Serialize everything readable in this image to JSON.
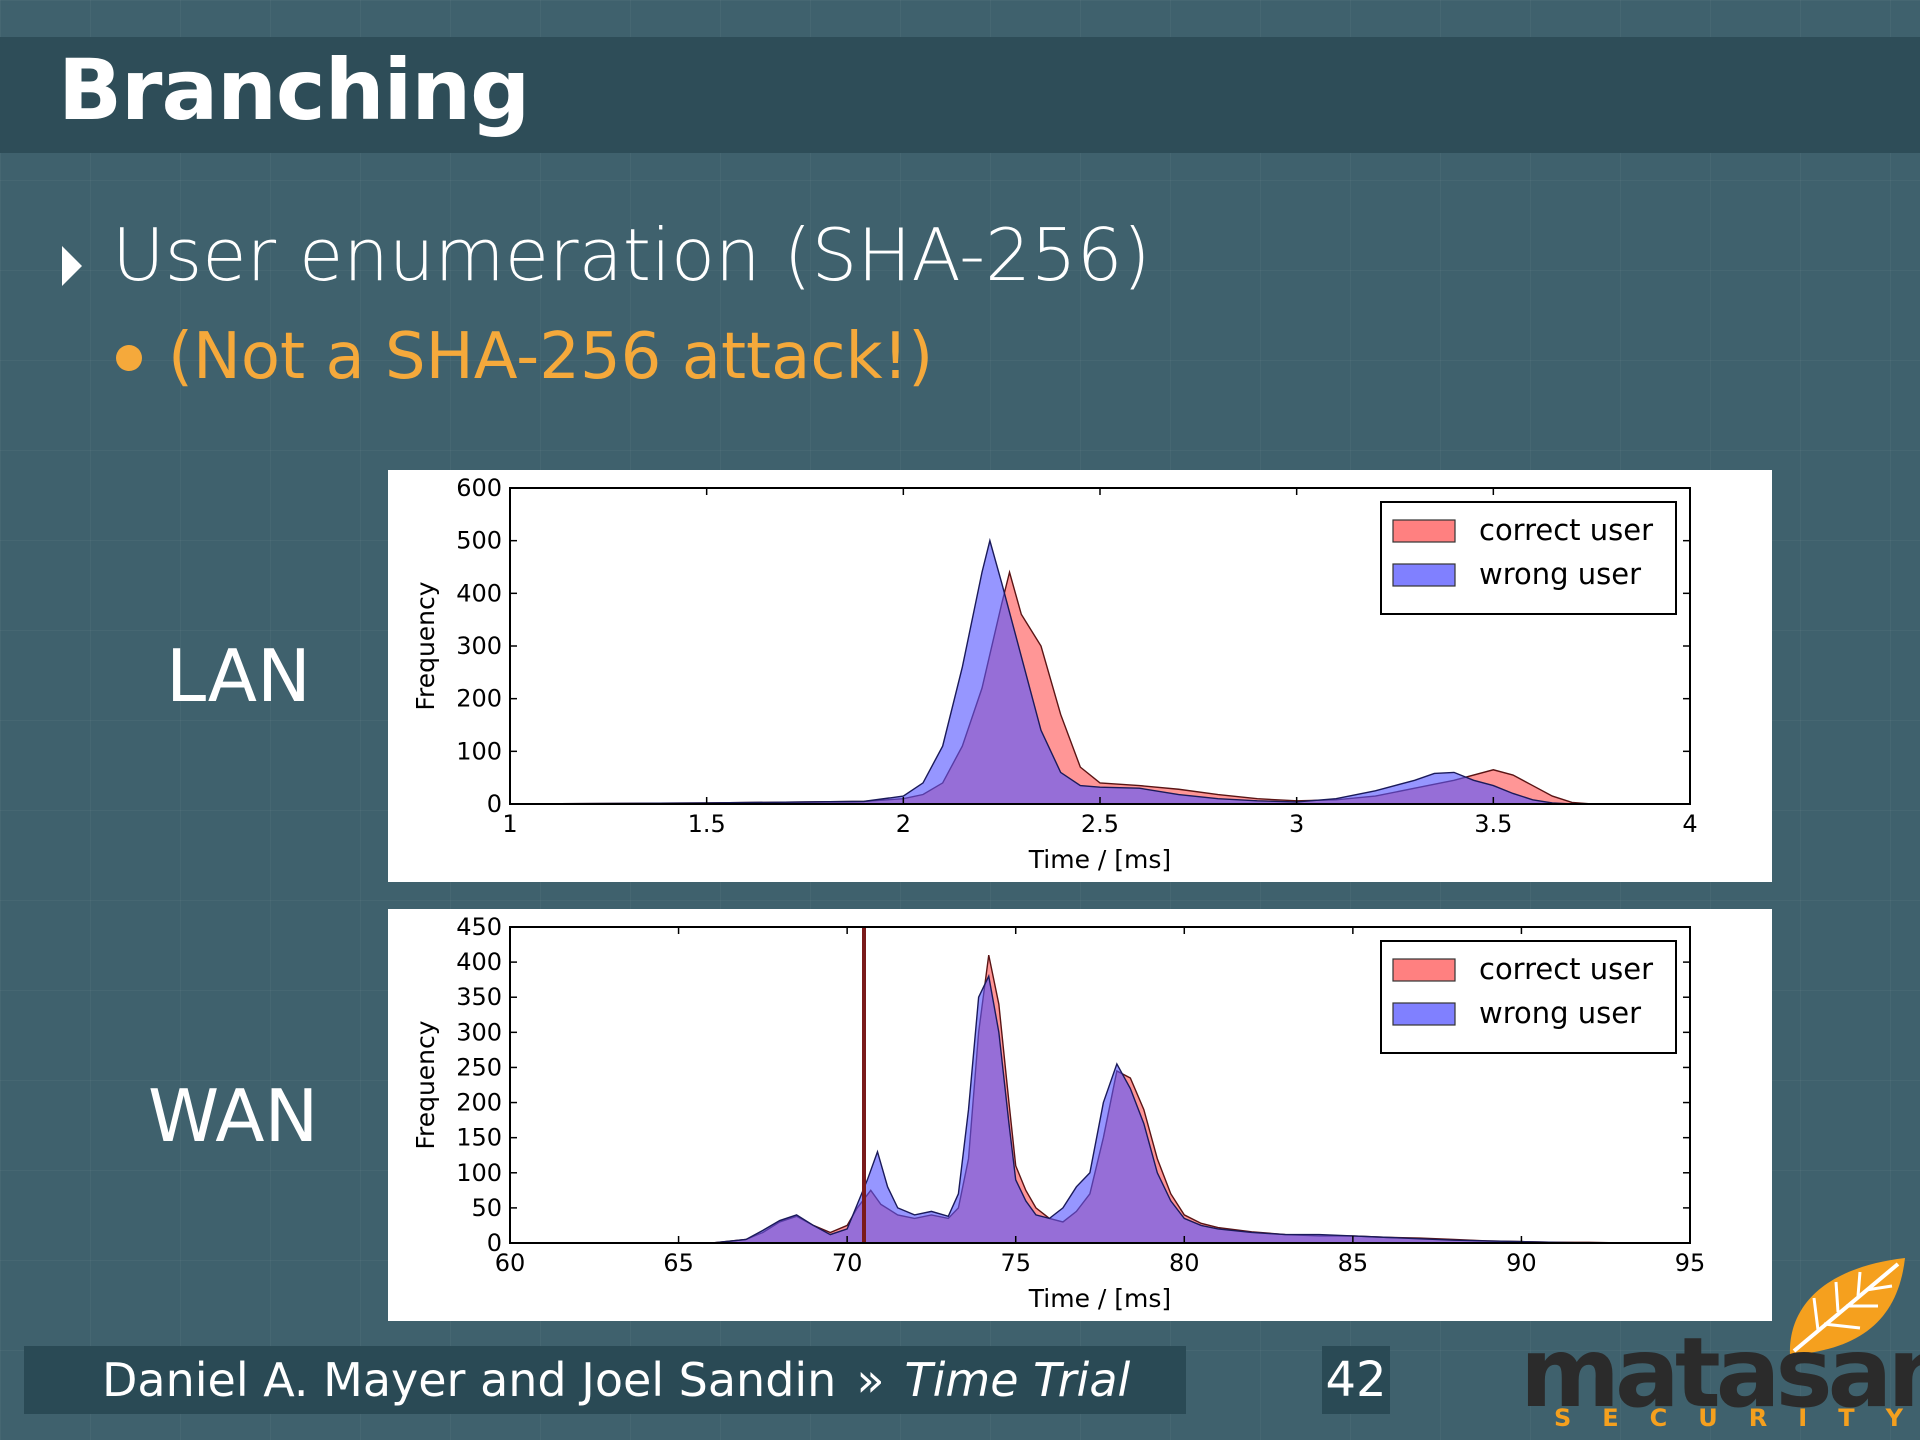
{
  "slide": {
    "title": "Branching",
    "bullet": "User enumeration (SHA-256)",
    "sub_bullet": "(Not a SHA-256 attack!)",
    "lan_label": "LAN",
    "wan_label": "WAN",
    "footer": {
      "authors": "Daniel A. Mayer and Joel Sandin",
      "separator": "»",
      "talk": "Time Trial",
      "page": "42"
    },
    "logo": {
      "name": "matasano",
      "tagline": "SECURITY"
    },
    "colors": {
      "background": "#3f616d",
      "title_bar": "#2e4d58",
      "accent": "#f5a93b"
    }
  },
  "chart_data": [
    {
      "type": "histogram",
      "panel": "LAN",
      "xlabel": "Time / [ms]",
      "ylabel": "Frequency",
      "xlim": [
        1,
        4
      ],
      "ylim": [
        0,
        600
      ],
      "xticks": [
        "1",
        "1.5",
        "2",
        "2.5",
        "3",
        "3.5",
        "4"
      ],
      "yticks": [
        "0",
        "100",
        "200",
        "300",
        "400",
        "500",
        "600"
      ],
      "legend_position": "top-right",
      "series": [
        {
          "name": "correct user",
          "color": "#ff5555",
          "points": [
            [
              1.0,
              0
            ],
            [
              1.5,
              2
            ],
            [
              1.9,
              5
            ],
            [
              2.0,
              10
            ],
            [
              2.05,
              18
            ],
            [
              2.1,
              40
            ],
            [
              2.15,
              110
            ],
            [
              2.2,
              220
            ],
            [
              2.25,
              380
            ],
            [
              2.27,
              440
            ],
            [
              2.3,
              360
            ],
            [
              2.35,
              300
            ],
            [
              2.4,
              170
            ],
            [
              2.45,
              70
            ],
            [
              2.5,
              40
            ],
            [
              2.6,
              35
            ],
            [
              2.7,
              28
            ],
            [
              2.8,
              18
            ],
            [
              2.9,
              10
            ],
            [
              3.0,
              6
            ],
            [
              3.1,
              8
            ],
            [
              3.2,
              15
            ],
            [
              3.3,
              30
            ],
            [
              3.4,
              45
            ],
            [
              3.5,
              65
            ],
            [
              3.55,
              55
            ],
            [
              3.6,
              35
            ],
            [
              3.65,
              15
            ],
            [
              3.7,
              3
            ],
            [
              3.75,
              0
            ]
          ]
        },
        {
          "name": "wrong user",
          "color": "#5555ff",
          "points": [
            [
              1.0,
              0
            ],
            [
              1.5,
              2
            ],
            [
              1.9,
              5
            ],
            [
              2.0,
              15
            ],
            [
              2.05,
              40
            ],
            [
              2.1,
              110
            ],
            [
              2.15,
              260
            ],
            [
              2.2,
              440
            ],
            [
              2.22,
              500
            ],
            [
              2.25,
              420
            ],
            [
              2.3,
              280
            ],
            [
              2.35,
              140
            ],
            [
              2.4,
              60
            ],
            [
              2.45,
              35
            ],
            [
              2.5,
              32
            ],
            [
              2.6,
              30
            ],
            [
              2.7,
              18
            ],
            [
              2.8,
              10
            ],
            [
              2.9,
              6
            ],
            [
              3.0,
              4
            ],
            [
              3.1,
              10
            ],
            [
              3.2,
              25
            ],
            [
              3.3,
              45
            ],
            [
              3.35,
              58
            ],
            [
              3.4,
              60
            ],
            [
              3.45,
              45
            ],
            [
              3.5,
              35
            ],
            [
              3.55,
              20
            ],
            [
              3.6,
              8
            ],
            [
              3.65,
              2
            ],
            [
              3.7,
              0
            ]
          ]
        }
      ]
    },
    {
      "type": "histogram",
      "panel": "WAN",
      "xlabel": "Time / [ms]",
      "ylabel": "Frequency",
      "xlim": [
        60,
        95
      ],
      "ylim": [
        0,
        450
      ],
      "xticks": [
        "60",
        "65",
        "70",
        "75",
        "80",
        "85",
        "90",
        "95"
      ],
      "yticks": [
        "0",
        "50",
        "100",
        "150",
        "200",
        "250",
        "300",
        "350",
        "400",
        "450"
      ],
      "legend_position": "top-right",
      "vertical_line_x": 70.5,
      "series": [
        {
          "name": "correct user",
          "color": "#ff5555",
          "points": [
            [
              60,
              0
            ],
            [
              66,
              0
            ],
            [
              67,
              5
            ],
            [
              67.5,
              15
            ],
            [
              68,
              30
            ],
            [
              68.5,
              38
            ],
            [
              69,
              25
            ],
            [
              69.5,
              15
            ],
            [
              70,
              25
            ],
            [
              70.3,
              50
            ],
            [
              70.7,
              75
            ],
            [
              71,
              55
            ],
            [
              71.5,
              40
            ],
            [
              72,
              35
            ],
            [
              72.5,
              40
            ],
            [
              73,
              35
            ],
            [
              73.3,
              50
            ],
            [
              73.6,
              120
            ],
            [
              73.9,
              300
            ],
            [
              74.2,
              410
            ],
            [
              74.5,
              340
            ],
            [
              74.8,
              200
            ],
            [
              75,
              110
            ],
            [
              75.3,
              75
            ],
            [
              75.6,
              50
            ],
            [
              76,
              35
            ],
            [
              76.4,
              30
            ],
            [
              76.8,
              45
            ],
            [
              77.2,
              70
            ],
            [
              77.6,
              150
            ],
            [
              78,
              245
            ],
            [
              78.4,
              235
            ],
            [
              78.8,
              190
            ],
            [
              79.2,
              120
            ],
            [
              79.6,
              70
            ],
            [
              80,
              40
            ],
            [
              80.5,
              28
            ],
            [
              81,
              22
            ],
            [
              82,
              16
            ],
            [
              83,
              12
            ],
            [
              84,
              10
            ],
            [
              85,
              10
            ],
            [
              86,
              8
            ],
            [
              87,
              7
            ],
            [
              88,
              5
            ],
            [
              89,
              3
            ],
            [
              90,
              2
            ],
            [
              91,
              1
            ],
            [
              92,
              1
            ],
            [
              93,
              0
            ]
          ]
        },
        {
          "name": "wrong user",
          "color": "#5555ff",
          "points": [
            [
              60,
              0
            ],
            [
              66,
              0
            ],
            [
              67,
              5
            ],
            [
              67.5,
              18
            ],
            [
              68,
              32
            ],
            [
              68.5,
              40
            ],
            [
              69,
              25
            ],
            [
              69.5,
              12
            ],
            [
              70,
              20
            ],
            [
              70.3,
              55
            ],
            [
              70.6,
              90
            ],
            [
              70.9,
              130
            ],
            [
              71.2,
              80
            ],
            [
              71.5,
              50
            ],
            [
              72,
              40
            ],
            [
              72.5,
              45
            ],
            [
              73,
              38
            ],
            [
              73.3,
              70
            ],
            [
              73.6,
              190
            ],
            [
              73.9,
              350
            ],
            [
              74.2,
              380
            ],
            [
              74.5,
              300
            ],
            [
              74.8,
              170
            ],
            [
              75,
              90
            ],
            [
              75.3,
              60
            ],
            [
              75.6,
              40
            ],
            [
              76,
              35
            ],
            [
              76.4,
              50
            ],
            [
              76.8,
              80
            ],
            [
              77.2,
              100
            ],
            [
              77.6,
              200
            ],
            [
              78,
              255
            ],
            [
              78.4,
              220
            ],
            [
              78.8,
              170
            ],
            [
              79.2,
              100
            ],
            [
              79.6,
              60
            ],
            [
              80,
              35
            ],
            [
              80.5,
              25
            ],
            [
              81,
              20
            ],
            [
              82,
              15
            ],
            [
              83,
              12
            ],
            [
              84,
              12
            ],
            [
              85,
              10
            ],
            [
              86,
              8
            ],
            [
              87,
              6
            ],
            [
              88,
              4
            ],
            [
              89,
              3
            ],
            [
              90,
              2
            ],
            [
              91,
              1
            ],
            [
              92,
              0
            ]
          ]
        }
      ]
    }
  ]
}
